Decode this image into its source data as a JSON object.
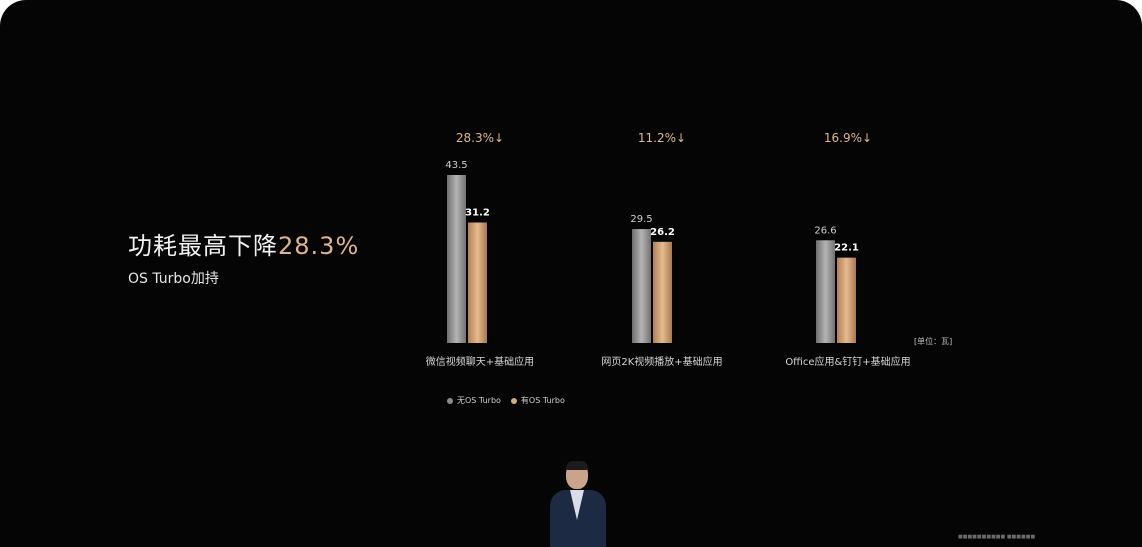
{
  "headline": {
    "text": "功耗最高下降",
    "highlight": "28.3%"
  },
  "subhead": "OS Turbo加持",
  "unit_label": "[单位：瓦]",
  "footnote": "■■■■■■■■■■ ■■■■■■",
  "colors": {
    "background": "#050505",
    "gray_bar": "#9a9a9a",
    "gold_bar": "#d9a878",
    "gold_text": "#e0b48c",
    "text": "#f2f2f2"
  },
  "chart_data": {
    "type": "bar",
    "categories": [
      "微信视频聊天+基础应用",
      "网页2K视频播放+基础应用",
      "Office应用&钉钉+基础应用"
    ],
    "series": [
      {
        "name": "无OS Turbo",
        "values": [
          43.5,
          29.5,
          26.6
        ]
      },
      {
        "name": "有OS Turbo",
        "values": [
          31.2,
          26.2,
          22.1
        ]
      }
    ],
    "reductions": [
      "28.3%↓",
      "11.2%↓",
      "16.9%↓"
    ],
    "value_labels": [
      [
        "43.5",
        "31.2"
      ],
      [
        "29.5",
        "26.2"
      ],
      [
        "26.6",
        "22.1"
      ]
    ],
    "ylim": [
      0,
      43.5
    ],
    "legend_position": "bottom-left",
    "grid": false
  }
}
